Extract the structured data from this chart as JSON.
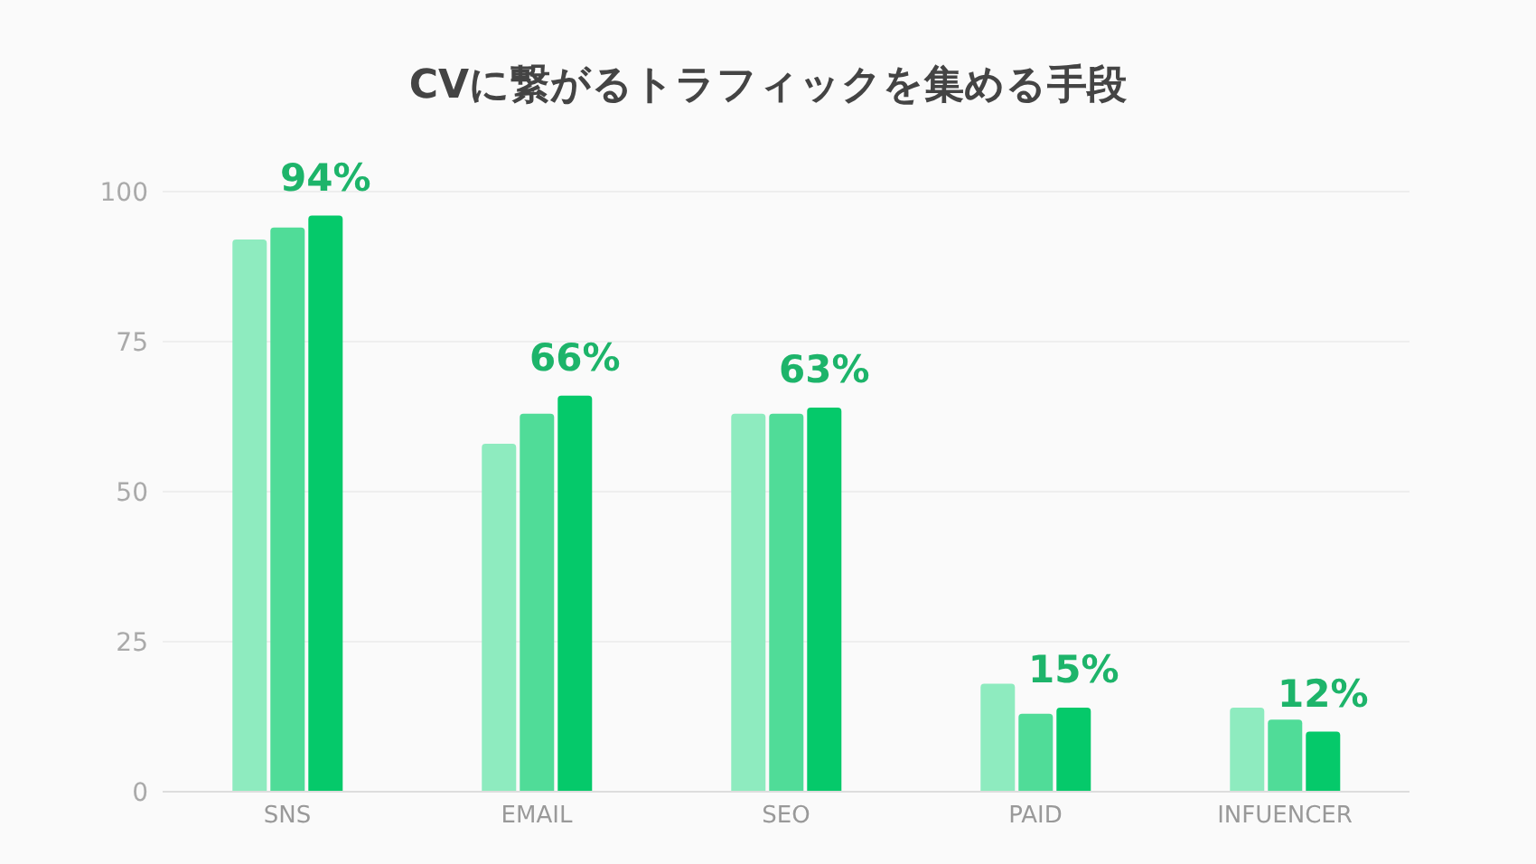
{
  "chart_data": {
    "type": "bar",
    "title": "CVに繋がるトラフィックを集める手段",
    "categories": [
      "SNS",
      "EMAIL",
      "SEO",
      "PAID",
      "INFUENCER"
    ],
    "series": [
      {
        "color": "#8eebbf",
        "values": [
          92,
          58,
          63,
          18,
          14
        ]
      },
      {
        "color": "#50dc98",
        "values": [
          94,
          63,
          63,
          13,
          12
        ]
      },
      {
        "color": "#05c96a",
        "values": [
          96,
          66,
          64,
          14,
          10
        ]
      }
    ],
    "ylim": [
      0,
      100
    ],
    "yticks": [
      0,
      25,
      50,
      75,
      100
    ],
    "grid": "y",
    "annotations": [
      "94%",
      "66%",
      "63%",
      "15%",
      "12%"
    ]
  }
}
